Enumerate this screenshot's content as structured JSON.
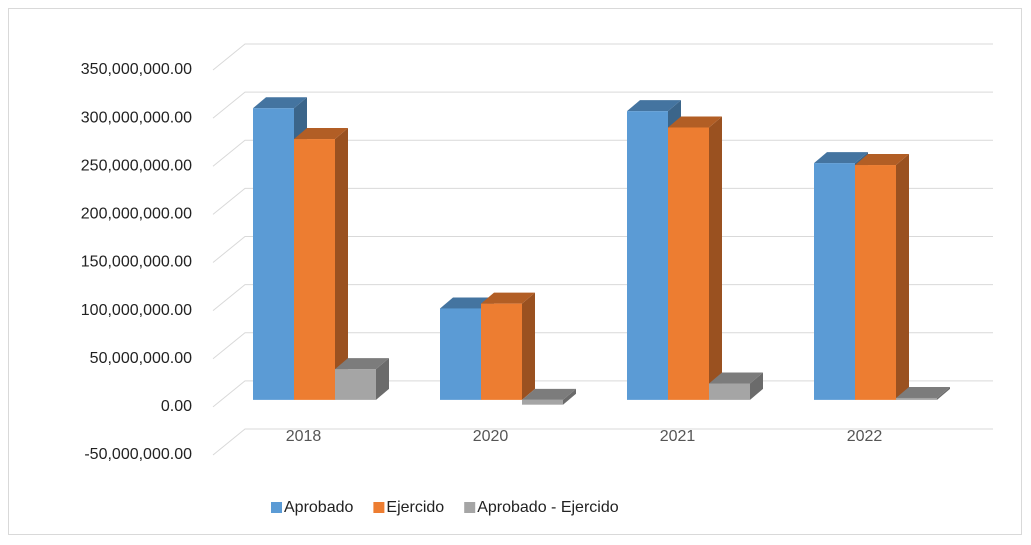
{
  "chart_data": {
    "type": "bar3d",
    "categories": [
      "2018",
      "2020",
      "2021",
      "2022"
    ],
    "series": [
      {
        "name": "Aprobado",
        "color": "#5b9bd5",
        "values": [
          303000000,
          95000000,
          300000000,
          246000000
        ]
      },
      {
        "name": "Ejercido",
        "color": "#ed7d31",
        "values": [
          271000000,
          100000000,
          283000000,
          244000000
        ]
      },
      {
        "name": "Aprobado - Ejercido",
        "color": "#a5a5a5",
        "values": [
          32000000,
          -5000000,
          17000000,
          2000000
        ]
      }
    ],
    "ylim": [
      -50000000,
      350000000
    ],
    "yticks": [
      {
        "value": -50000000,
        "label": "-50,000,000.00"
      },
      {
        "value": 0,
        "label": "0.00"
      },
      {
        "value": 50000000,
        "label": "50,000,000.00"
      },
      {
        "value": 100000000,
        "label": "100,000,000.00"
      },
      {
        "value": 150000000,
        "label": "150,000,000.00"
      },
      {
        "value": 200000000,
        "label": "200,000,000.00"
      },
      {
        "value": 250000000,
        "label": "250,000,000.00"
      },
      {
        "value": 300000000,
        "label": "300,000,000.00"
      },
      {
        "value": 350000000,
        "label": "350,000,000.00"
      }
    ],
    "grid": true,
    "legend": "bottom"
  }
}
